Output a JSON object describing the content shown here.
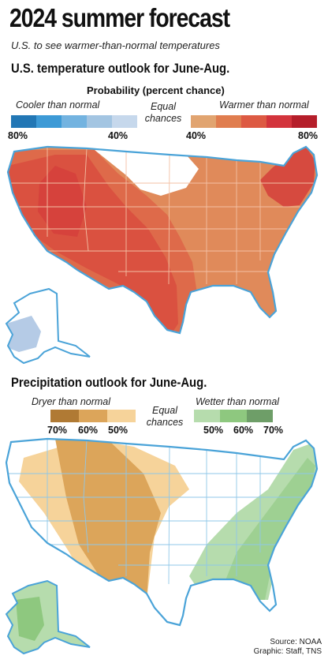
{
  "title": "2024 summer forecast",
  "subtitle": "U.S. to see warmer-than-normal temperatures",
  "temperature": {
    "heading": "U.S. temperature outlook for June-Aug.",
    "legend_title": "Probability (percent chance)",
    "cooler_label": "Cooler than normal",
    "warmer_label": "Warmer than normal",
    "equal_label_1": "Equal",
    "equal_label_2": "chances",
    "cooler_ticks": [
      "80%",
      "40%"
    ],
    "warmer_ticks": [
      "40%",
      "80%"
    ],
    "cooler_colors": [
      "#2277b5",
      "#3d9ad6",
      "#73b3e0",
      "#a3c5e2",
      "#c6d8ec"
    ],
    "warmer_colors": [
      "#e1a470",
      "#e07d4f",
      "#dd5a43",
      "#d3343c",
      "#b51e2a"
    ]
  },
  "precipitation": {
    "heading": "Precipitation outlook for June-Aug.",
    "dryer_label": "Dryer than normal",
    "wetter_label": "Wetter than normal",
    "equal_label_1": "Equal",
    "equal_label_2": "chances",
    "dryer_ticks": [
      "70%",
      "60%",
      "50%"
    ],
    "wetter_ticks": [
      "50%",
      "60%",
      "70%"
    ],
    "dryer_colors": [
      "#b07a34",
      "#dca55a",
      "#f6d39a"
    ],
    "wetter_colors": [
      "#b6dcad",
      "#8ec87f",
      "#6e9e68"
    ]
  },
  "credit": {
    "source": "Source: NOAA",
    "graphic": "Graphic: Staff, TNS"
  }
}
